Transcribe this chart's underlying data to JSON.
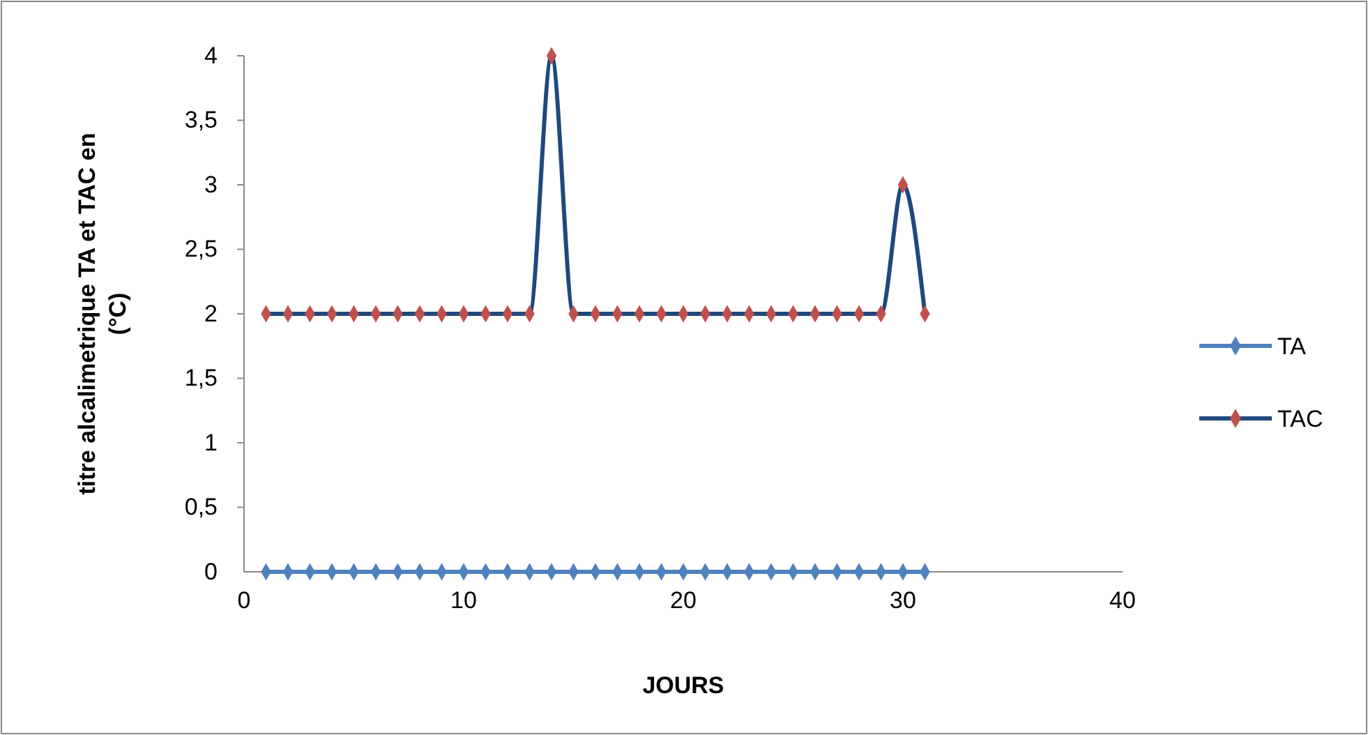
{
  "chart_data": {
    "type": "line",
    "xlabel": "JOURS",
    "ylabel": "titre alcalimetrique TA et TAC en (°C)",
    "x": [
      1,
      2,
      3,
      4,
      5,
      6,
      7,
      8,
      9,
      10,
      11,
      12,
      13,
      14,
      15,
      16,
      17,
      18,
      19,
      20,
      21,
      22,
      23,
      24,
      25,
      26,
      27,
      28,
      29,
      30,
      31
    ],
    "series": [
      {
        "name": "TA",
        "color": "#4f81bd",
        "values": [
          0,
          0,
          0,
          0,
          0,
          0,
          0,
          0,
          0,
          0,
          0,
          0,
          0,
          0,
          0,
          0,
          0,
          0,
          0,
          0,
          0,
          0,
          0,
          0,
          0,
          0,
          0,
          0,
          0,
          0,
          0
        ]
      },
      {
        "name": "TAC",
        "color": "#1f497d",
        "colors": [
          "#c0504d",
          "#c0504d",
          "#c0504d",
          "#c0504d",
          "#c0504d",
          "#c0504d",
          "#c0504d",
          "#c0504d",
          "#c0504d",
          "#c0504d",
          "#c0504d",
          "#c0504d",
          "#c0504d",
          "#c0504d",
          "#c0504d",
          "#c0504d",
          "#c0504d",
          "#c0504d",
          "#c0504d",
          "#c0504d",
          "#c0504d",
          "#c0504d",
          "#c0504d",
          "#c0504d",
          "#c0504d",
          "#c0504d",
          "#c0504d",
          "#c0504d",
          "#c0504d",
          "#c0504d",
          "#c0504d"
        ],
        "values": [
          2,
          2,
          2,
          2,
          2,
          2,
          2,
          2,
          2,
          2,
          2,
          2,
          2,
          4,
          2,
          2,
          2,
          2,
          2,
          2,
          2,
          2,
          2,
          2,
          2,
          2,
          2,
          2,
          2,
          3,
          2
        ]
      }
    ],
    "xlim": [
      0,
      40
    ],
    "xticks": [
      0,
      10,
      20,
      30,
      40
    ],
    "ylim": [
      0,
      4
    ],
    "yticks": [
      0,
      {
        "value": 0.5,
        "label": "0,5"
      },
      1,
      {
        "value": 1.5,
        "label": "1,5"
      },
      2,
      {
        "value": 2.5,
        "label": "2,5"
      },
      3,
      {
        "value": 3.5,
        "label": "3,5"
      },
      4
    ],
    "marker": "diamond",
    "line_style": "solid",
    "grid": false,
    "legend": "right"
  }
}
